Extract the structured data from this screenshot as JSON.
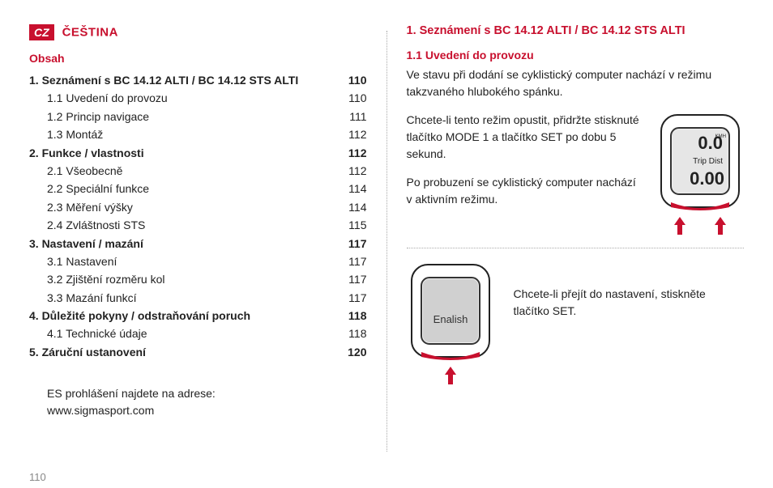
{
  "header": {
    "badge": "CZ",
    "language": "ČEŠTINA"
  },
  "toc": {
    "heading": "Obsah",
    "items": [
      {
        "bold": true,
        "label": "1.  Seznámení s BC 14.12 ALTI / BC 14.12 STS ALTI",
        "page": "110"
      },
      {
        "bold": false,
        "label": "1.1 Uvedení do provozu",
        "page": "110"
      },
      {
        "bold": false,
        "label": "1.2 Princip navigace",
        "page": "111"
      },
      {
        "bold": false,
        "label": "1.3 Montáž",
        "page": "112"
      },
      {
        "bold": true,
        "label": "2.  Funkce / vlastnosti",
        "page": "112"
      },
      {
        "bold": false,
        "label": "2.1 Všeobecně",
        "page": "112"
      },
      {
        "bold": false,
        "label": "2.2 Speciální funkce",
        "page": "114"
      },
      {
        "bold": false,
        "label": "2.3 Měření výšky",
        "page": "114"
      },
      {
        "bold": false,
        "label": "2.4 Zvláštnosti STS",
        "page": "115"
      },
      {
        "bold": true,
        "label": "3.  Nastavení / mazání",
        "page": "117"
      },
      {
        "bold": false,
        "label": "3.1 Nastavení",
        "page": "117"
      },
      {
        "bold": false,
        "label": "3.2 Zjištění rozměru kol",
        "page": "117"
      },
      {
        "bold": false,
        "label": "3.3 Mazání funkcí",
        "page": "117"
      },
      {
        "bold": true,
        "label": "4.  Důležité pokyny / odstraňování poruch",
        "page": "118"
      },
      {
        "bold": false,
        "label": "4.1 Technické údaje",
        "page": "118"
      },
      {
        "bold": true,
        "label": "5.  Záruční ustanovení",
        "page": "120"
      }
    ]
  },
  "es_note": {
    "line1": "ES prohlášení najdete na adrese:",
    "line2": "www.sigmasport.com"
  },
  "page_number": "110",
  "right": {
    "chapter_title": "1. Seznámení s BC 14.12 ALTI / BC 14.12 STS ALTI",
    "section_title": "1.1 Uvedení do provozu",
    "p1": "Ve stavu při dodání se cyklistický computer nachází v režimu takzvaného hlubokého spánku.",
    "p2": "Chcete-li tento režim opustit, přidržte stisknuté tlačítko MODE 1 a tlačítko SET po dobu 5 sekund.",
    "p3": "Po probuzení se cyklistický computer nachází v aktivním režimu.",
    "p4": "Chcete-li přejít do nastavení, stiskněte tlačítko SET.",
    "device1": {
      "top_value": "0.0",
      "top_unit": "KMH",
      "mid_label": "Trip Dist",
      "bottom_value": "0.00"
    },
    "device2": {
      "screen_text": "Enalish"
    }
  },
  "colors": {
    "accent": "#c8102e",
    "text": "#222222",
    "muted": "#888888",
    "dotted": "#aaaaaa"
  }
}
